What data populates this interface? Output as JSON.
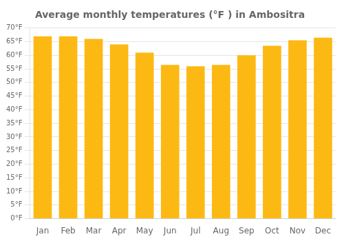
{
  "chart_data": {
    "type": "bar",
    "title": "Average monthly temperatures (°F ) in Ambositra",
    "categories": [
      "Jan",
      "Feb",
      "Mar",
      "Apr",
      "May",
      "Jun",
      "Jul",
      "Aug",
      "Sep",
      "Oct",
      "Nov",
      "Dec"
    ],
    "values": [
      67,
      67,
      66,
      64,
      61,
      56.5,
      56,
      56.5,
      60,
      63.5,
      65.5,
      66.5
    ],
    "color": "#FDB913",
    "ylim": [
      0,
      70
    ],
    "yticks": [
      {
        "value": 0,
        "label": "0°F"
      },
      {
        "value": 5,
        "label": "5°F"
      },
      {
        "value": 10,
        "label": "10°F"
      },
      {
        "value": 15,
        "label": "15°F"
      },
      {
        "value": 20,
        "label": "20°F"
      },
      {
        "value": 25,
        "label": "25°F"
      },
      {
        "value": 30,
        "label": "30°F"
      },
      {
        "value": 35,
        "label": "35°F"
      },
      {
        "value": 40,
        "label": "40°F"
      },
      {
        "value": 45,
        "label": "45°F"
      },
      {
        "value": 50,
        "label": "50°F"
      },
      {
        "value": 55,
        "label": "55°F"
      },
      {
        "value": 60,
        "label": "60°F"
      },
      {
        "value": 65,
        "label": "65°F"
      },
      {
        "value": 70,
        "label": "70°F"
      }
    ],
    "grid": true
  }
}
